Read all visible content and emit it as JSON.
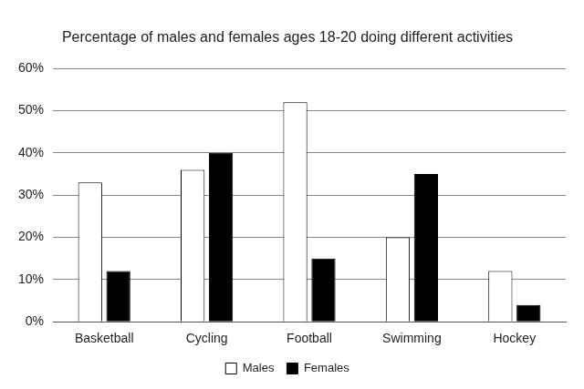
{
  "chart_data": {
    "type": "bar",
    "title": "Percentage of males and females ages 18-20 doing different activities",
    "categories": [
      "Basketball",
      "Cycling",
      "Football",
      "Swimming",
      "Hockey"
    ],
    "series": [
      {
        "name": "Males",
        "color": "#ffffff",
        "values": [
          33,
          36,
          52,
          20,
          12
        ]
      },
      {
        "name": "Females",
        "color": "#000000",
        "values": [
          12,
          40,
          15,
          35,
          4
        ]
      }
    ],
    "ylim": [
      0,
      60
    ],
    "yticks": [
      {
        "value": 0,
        "label": "0%"
      },
      {
        "value": 10,
        "label": "10%"
      },
      {
        "value": 20,
        "label": "20%"
      },
      {
        "value": 30,
        "label": "30%"
      },
      {
        "value": 40,
        "label": "40%"
      },
      {
        "value": 50,
        "label": "50%"
      },
      {
        "value": 60,
        "label": "60%"
      }
    ],
    "grid": true,
    "legend": "bottom"
  }
}
